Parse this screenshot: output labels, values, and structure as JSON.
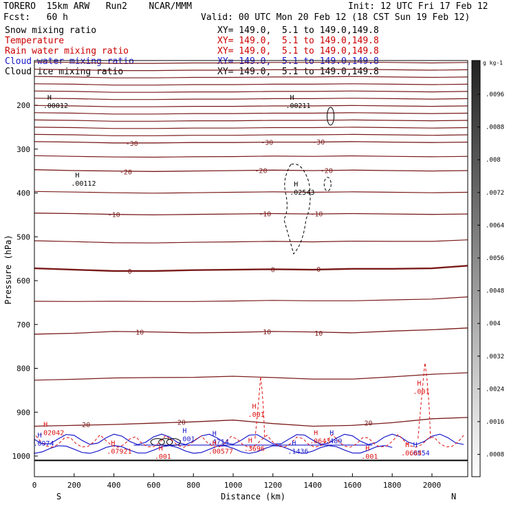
{
  "header": {
    "model": "TORERO  15km ARW   Run2    NCAR/MMM",
    "init": "Init: 12 UTC Fri 17 Feb 12",
    "fcst": "Fcst:   60 h",
    "valid": "Valid: 00 UTC Mon 20 Feb 12 (18 CST Sun 19 Feb 12)"
  },
  "fields": [
    {
      "name": "Snow mixing ratio",
      "xy": "XY= 149.0,  5.1 to 149.0,149.8",
      "color": "#000000"
    },
    {
      "name": "Temperature",
      "xy": "XY= 149.0,  5.1 to 149.0,149.8",
      "color": "#cc0000"
    },
    {
      "name": "Rain water mixing ratio",
      "xy": "XY= 149.0,  5.1 to 149.0,149.8",
      "color": "#cc0000"
    },
    {
      "name": "Cloud water mixing ratio",
      "xy": "XY= 149.0,  5.1 to 149.0,149.8",
      "color": "#1a1acc"
    },
    {
      "name": "Cloud ice mixing ratio",
      "xy": "XY= 149.0,  5.1 to 149.0,149.8",
      "color": "#000000"
    }
  ],
  "colors": {
    "temperature": "#7a1a1a",
    "rain": "#dd1111",
    "cloud_water": "#1a1acc",
    "snow": "#000000",
    "frame": "#000000"
  },
  "chart_data": {
    "type": "cross-section",
    "xlabel": "Distance (km)",
    "ylabel": "Pressure (hPa)",
    "xlim": [
      0,
      2180
    ],
    "ylim": [
      1050,
      100
    ],
    "x_ticks": [
      0,
      200,
      400,
      600,
      800,
      1000,
      1200,
      1400,
      1600,
      1800,
      2000
    ],
    "y_ticks": [
      200,
      300,
      400,
      500,
      600,
      700,
      800,
      900,
      1000
    ],
    "endpoint_labels": {
      "left": "S",
      "right": "N"
    },
    "colorbar": {
      "unit": "g kg-1",
      "ticks": [
        ".0096",
        ".0088",
        ".008",
        ".0072",
        ".0064",
        ".0056",
        ".0048",
        ".004",
        ".0032",
        ".0024",
        ".0016",
        ".0008"
      ]
    },
    "temperature_isotherms": [
      {
        "label": "-30",
        "p": [
          283,
          284,
          286,
          286,
          285,
          285,
          284,
          284,
          283,
          284,
          285,
          284
        ],
        "label_pos": [
          [
            490,
            -30
          ],
          [
            1170,
            -30
          ],
          [
            1430,
            -30
          ]
        ]
      },
      {
        "label": "-20",
        "p": [
          347,
          349,
          350,
          351,
          350,
          349,
          348,
          349,
          348,
          349,
          350,
          349
        ],
        "label_pos": [
          [
            460,
            -20
          ],
          [
            1140,
            -20
          ],
          [
            1470,
            -20
          ]
        ]
      },
      {
        "label": "-10",
        "p": [
          446,
          447,
          449,
          450,
          449,
          448,
          447,
          448,
          447,
          448,
          449,
          448
        ],
        "label_pos": [
          [
            400,
            -10
          ],
          [
            1160,
            -10
          ],
          [
            1420,
            -10
          ]
        ]
      },
      {
        "label": "0",
        "p": [
          572,
          575,
          578,
          578,
          576,
          575,
          574,
          575,
          573,
          573,
          572,
          566
        ],
        "label_pos": [
          [
            480,
            0
          ],
          [
            1200,
            0
          ],
          [
            1430,
            0
          ]
        ]
      },
      {
        "label": "10",
        "p": [
          722,
          720,
          716,
          717,
          719,
          718,
          716,
          717,
          719,
          715,
          712,
          708
        ],
        "label_pos": [
          [
            530,
            10
          ],
          [
            1170,
            10
          ],
          [
            1430,
            10
          ]
        ]
      },
      {
        "label": "20",
        "p": [
          932,
          930,
          928,
          925,
          922,
          918,
          926,
          932,
          930,
          924,
          915,
          912
        ],
        "label_pos": [
          [
            740,
            20
          ],
          [
            1680,
            20
          ],
          [
            260,
            20
          ]
        ]
      }
    ],
    "isotherm_x": [
      0,
      200,
      400,
      600,
      800,
      1000,
      1200,
      1400,
      1600,
      1800,
      2000,
      2180
    ],
    "maxima_labels": [
      {
        "field": "snow",
        "text": ".00012",
        "x": 100,
        "p": 200
      },
      {
        "field": "snow",
        "text": ".00211",
        "x": 1320,
        "p": 200
      },
      {
        "field": "snow",
        "text": ".00112",
        "x": 240,
        "p": 377
      },
      {
        "field": "snow",
        "text": ".02543",
        "x": 1340,
        "p": 398
      },
      {
        "field": "rain",
        "text": ".02042",
        "x": 80,
        "p": 946
      },
      {
        "field": "cloud",
        "text": ".0974",
        "x": 50,
        "p": 970
      },
      {
        "field": "rain",
        "text": ".07921",
        "x": 420,
        "p": 988
      },
      {
        "field": "cloud",
        "text": ".001",
        "x": 780,
        "p": 960
      },
      {
        "field": "cloud",
        "text": ".4714",
        "x": 930,
        "p": 966
      },
      {
        "field": "rain",
        "text": ".00577",
        "x": 930,
        "p": 988
      },
      {
        "field": "rain",
        "text": ".3696",
        "x": 1110,
        "p": 982
      },
      {
        "field": "cloud",
        "text": ".1436",
        "x": 1330,
        "p": 988
      },
      {
        "field": "rain",
        "text": ".0643",
        "x": 1440,
        "p": 965
      },
      {
        "field": "cloud",
        "text": ".489",
        "x": 1520,
        "p": 965
      },
      {
        "field": "rain",
        "text": ".001",
        "x": 1130,
        "p": 904
      },
      {
        "field": "rain",
        "text": ".001",
        "x": 1960,
        "p": 852
      },
      {
        "field": "rain",
        "text": ".001",
        "x": 660,
        "p": 1000
      },
      {
        "field": "rain",
        "text": ".001",
        "x": 1700,
        "p": 1000
      },
      {
        "field": "cloud",
        "text": ".0554",
        "x": 1940,
        "p": 992
      },
      {
        "field": "rain",
        "text": ".0664",
        "x": 1900,
        "p": 992
      }
    ]
  }
}
